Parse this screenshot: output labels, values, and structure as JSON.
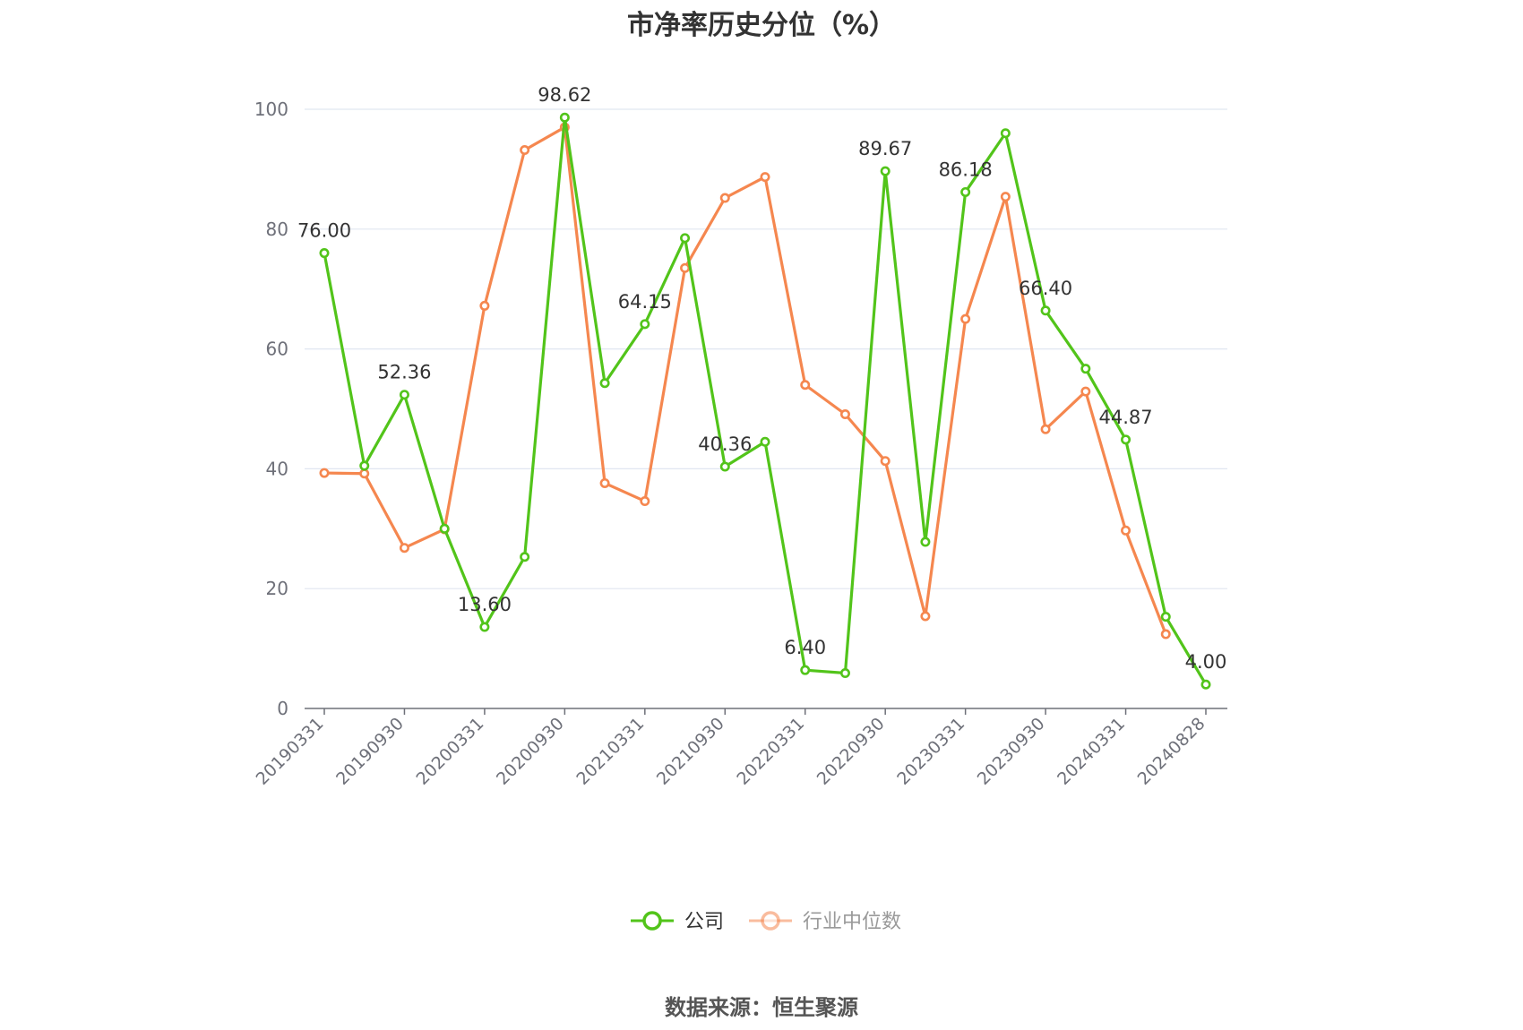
{
  "title": "市净率历史分位（%）",
  "source": "数据来源：恒生聚源",
  "colors": {
    "company": "#52c41a",
    "industry": "#f5874f",
    "grid": "#e0e6f1",
    "axis": "#6e7079"
  },
  "chart_data": {
    "type": "line",
    "title": "市净率历史分位（%）",
    "ylim": [
      0,
      100
    ],
    "yticks": [
      0,
      20,
      40,
      60,
      80,
      100
    ],
    "grid": true,
    "legend_position": "bottom",
    "xtick_labels": [
      "20190331",
      "20190930",
      "20200331",
      "20200930",
      "20210331",
      "20210930",
      "20220331",
      "20220930",
      "20230331",
      "20230930",
      "20240331",
      "20240828"
    ],
    "x": [
      "20190331",
      "20190630",
      "20190930",
      "20191231",
      "20200331",
      "20200630",
      "20200930",
      "20201231",
      "20210331",
      "20210630",
      "20210930",
      "20211231",
      "20220331",
      "20220630",
      "20220930",
      "20221231",
      "20230331",
      "20230630",
      "20230930",
      "20231231",
      "20240331",
      "20240630",
      "20240828"
    ],
    "series": [
      {
        "name": "公司",
        "color": "#52c41a",
        "values": [
          76.0,
          40.5,
          52.36,
          30.0,
          13.6,
          25.3,
          98.62,
          54.3,
          64.15,
          78.5,
          40.36,
          44.5,
          6.4,
          5.9,
          89.67,
          27.8,
          86.18,
          96.0,
          66.4,
          56.7,
          44.87,
          15.3,
          4.0
        ],
        "labels": [
          "76.00",
          null,
          "52.36",
          null,
          "13.60",
          null,
          "98.62",
          null,
          "64.15",
          null,
          "40.36",
          null,
          "6.40",
          null,
          "89.67",
          null,
          "86.18",
          null,
          "66.40",
          null,
          "44.87",
          null,
          "4.00"
        ]
      },
      {
        "name": "行业中位数",
        "color": "#f5874f",
        "values": [
          39.3,
          39.2,
          26.8,
          29.9,
          67.2,
          93.2,
          97.0,
          37.6,
          34.6,
          73.5,
          85.2,
          88.7,
          54.0,
          49.1,
          41.3,
          15.4,
          65.0,
          85.4,
          46.6,
          52.9,
          29.7,
          12.4,
          null
        ]
      }
    ]
  }
}
